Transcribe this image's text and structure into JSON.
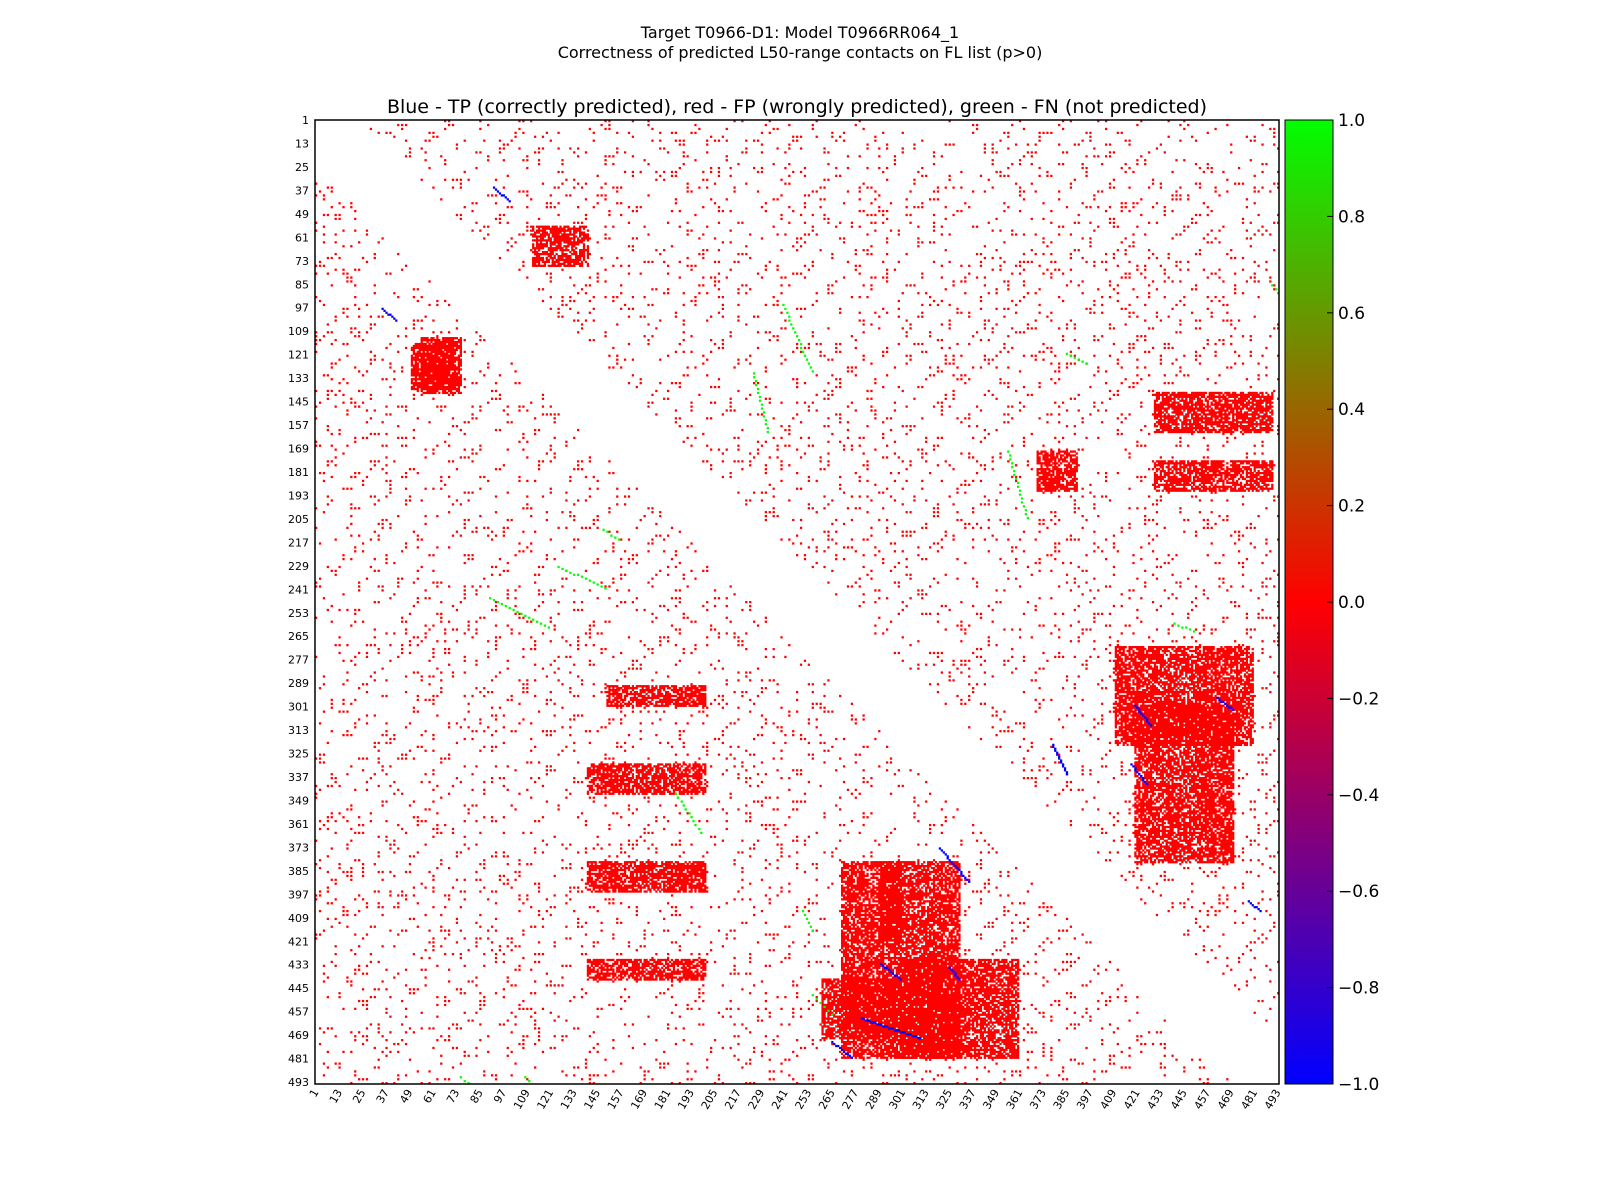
{
  "figure": {
    "title_line1": "Target T0966-D1: Model T0966RR064_1",
    "title_line2": "Correctness of predicted L50-range contacts on FL list (p>0)"
  },
  "chart_data": {
    "type": "heatmap",
    "title": "Blue - TP (correctly predicted), red - FP (wrongly predicted), green - FN (not predicted)",
    "xlabel": "",
    "ylabel": "",
    "xlim": [
      1,
      494
    ],
    "ylim": [
      1,
      494
    ],
    "y_axis_direction": "down",
    "tick_labels": [
      "1",
      "13",
      "25",
      "37",
      "49",
      "61",
      "73",
      "85",
      "97",
      "109",
      "121",
      "133",
      "145",
      "157",
      "169",
      "181",
      "193",
      "205",
      "217",
      "229",
      "241",
      "253",
      "265",
      "277",
      "289",
      "301",
      "313",
      "325",
      "337",
      "349",
      "361",
      "373",
      "385",
      "397",
      "409",
      "421",
      "433",
      "445",
      "457",
      "469",
      "481",
      "493"
    ],
    "colorbar": {
      "min": -1.0,
      "max": 1.0,
      "ticks": [
        "1.0",
        "0.8",
        "0.6",
        "0.4",
        "0.2",
        "0.0",
        "−0.2",
        "−0.4",
        "−0.6",
        "−0.8",
        "−1.0"
      ],
      "colors": [
        "#00ff00",
        "#ff0000",
        "#0000ff"
      ]
    },
    "categories": [
      {
        "name": "TP",
        "value": -1,
        "color": "#0000ff"
      },
      {
        "name": "FP",
        "value": 0,
        "color": "#ff0000"
      },
      {
        "name": "FN",
        "value": 1,
        "color": "#00ff00"
      }
    ],
    "contact_regions": [
      {
        "cls": "FP",
        "i": [
          55,
          75
        ],
        "j": [
          112,
          140
        ]
      },
      {
        "cls": "FP",
        "i": [
          112,
          140
        ],
        "j": [
          55,
          75
        ]
      },
      {
        "cls": "FP",
        "i": [
          115,
          138
        ],
        "j": [
          50,
          72
        ]
      },
      {
        "cls": "FP",
        "i": [
          270,
          320
        ],
        "j": [
          410,
          480
        ]
      },
      {
        "cls": "FP",
        "i": [
          300,
          380
        ],
        "j": [
          420,
          470
        ]
      },
      {
        "cls": "FP",
        "i": [
          380,
          480
        ],
        "j": [
          270,
          330
        ]
      },
      {
        "cls": "FP",
        "i": [
          430,
          480
        ],
        "j": [
          300,
          360
        ]
      },
      {
        "cls": "FP",
        "i": [
          380,
          420
        ],
        "j": [
          290,
          300
        ]
      },
      {
        "cls": "FP",
        "i": [
          440,
          470
        ],
        "j": [
          260,
          300
        ]
      },
      {
        "cls": "FP",
        "i": [
          175,
          190
        ],
        "j": [
          430,
          490
        ]
      },
      {
        "cls": "FP",
        "i": [
          140,
          160
        ],
        "j": [
          430,
          490
        ]
      },
      {
        "cls": "FP",
        "i": [
          170,
          190
        ],
        "j": [
          370,
          390
        ]
      },
      {
        "cls": "FP",
        "i": [
          330,
          345
        ],
        "j": [
          140,
          200
        ]
      },
      {
        "cls": "FP",
        "i": [
          380,
          395
        ],
        "j": [
          140,
          200
        ]
      },
      {
        "cls": "FP",
        "i": [
          430,
          440
        ],
        "j": [
          140,
          200
        ]
      },
      {
        "cls": "FP",
        "i": [
          290,
          300
        ],
        "j": [
          150,
          200
        ]
      }
    ],
    "true_positives": [
      {
        "i": [
          35,
          42
        ],
        "j": [
          92,
          100
        ]
      },
      {
        "i": [
          97,
          103
        ],
        "j": [
          35,
          42
        ]
      },
      {
        "i": [
          300,
          310
        ],
        "j": [
          420,
          428
        ]
      },
      {
        "i": [
          330,
          340
        ],
        "j": [
          418,
          426
        ]
      },
      {
        "i": [
          320,
          335
        ],
        "j": [
          378,
          385
        ]
      },
      {
        "i": [
          373,
          390
        ],
        "j": [
          320,
          335
        ]
      },
      {
        "i": [
          432,
          440
        ],
        "j": [
          290,
          300
        ]
      },
      {
        "i": [
          434,
          440
        ],
        "j": [
          325,
          330
        ]
      },
      {
        "i": [
          460,
          470
        ],
        "j": [
          280,
          310
        ]
      },
      {
        "i": [
          472,
          480
        ],
        "j": [
          265,
          275
        ]
      },
      {
        "i": [
          400,
          405
        ],
        "j": [
          478,
          484
        ]
      },
      {
        "i": [
          296,
          302
        ],
        "j": [
          462,
          470
        ]
      }
    ],
    "false_negatives": [
      {
        "i": [
          95,
          130
        ],
        "j": [
          240,
          255
        ]
      },
      {
        "i": [
          130,
          160
        ],
        "j": [
          225,
          232
        ]
      },
      {
        "i": [
          210,
          215
        ],
        "j": [
          148,
          156
        ]
      },
      {
        "i": [
          229,
          240
        ],
        "j": [
          125,
          150
        ]
      },
      {
        "i": [
          245,
          260
        ],
        "j": [
          90,
          120
        ]
      },
      {
        "i": [
          345,
          365
        ],
        "j": [
          185,
          198
        ]
      },
      {
        "i": [
          405,
          415
        ],
        "j": [
          250,
          255
        ]
      },
      {
        "i": [
          448,
          458
        ],
        "j": [
          255,
          265
        ]
      },
      {
        "i": [
          490,
          494
        ],
        "j": [
          75,
          80
        ]
      },
      {
        "i": [
          490,
          494
        ],
        "j": [
          108,
          112
        ]
      },
      {
        "i": [
          170,
          205
        ],
        "j": [
          355,
          365
        ]
      },
      {
        "i": [
          120,
          125
        ],
        "j": [
          385,
          395
        ]
      },
      {
        "i": [
          258,
          262
        ],
        "j": [
          440,
          450
        ]
      },
      {
        "i": [
          85,
          90
        ],
        "j": [
          490,
          494
        ]
      }
    ]
  }
}
